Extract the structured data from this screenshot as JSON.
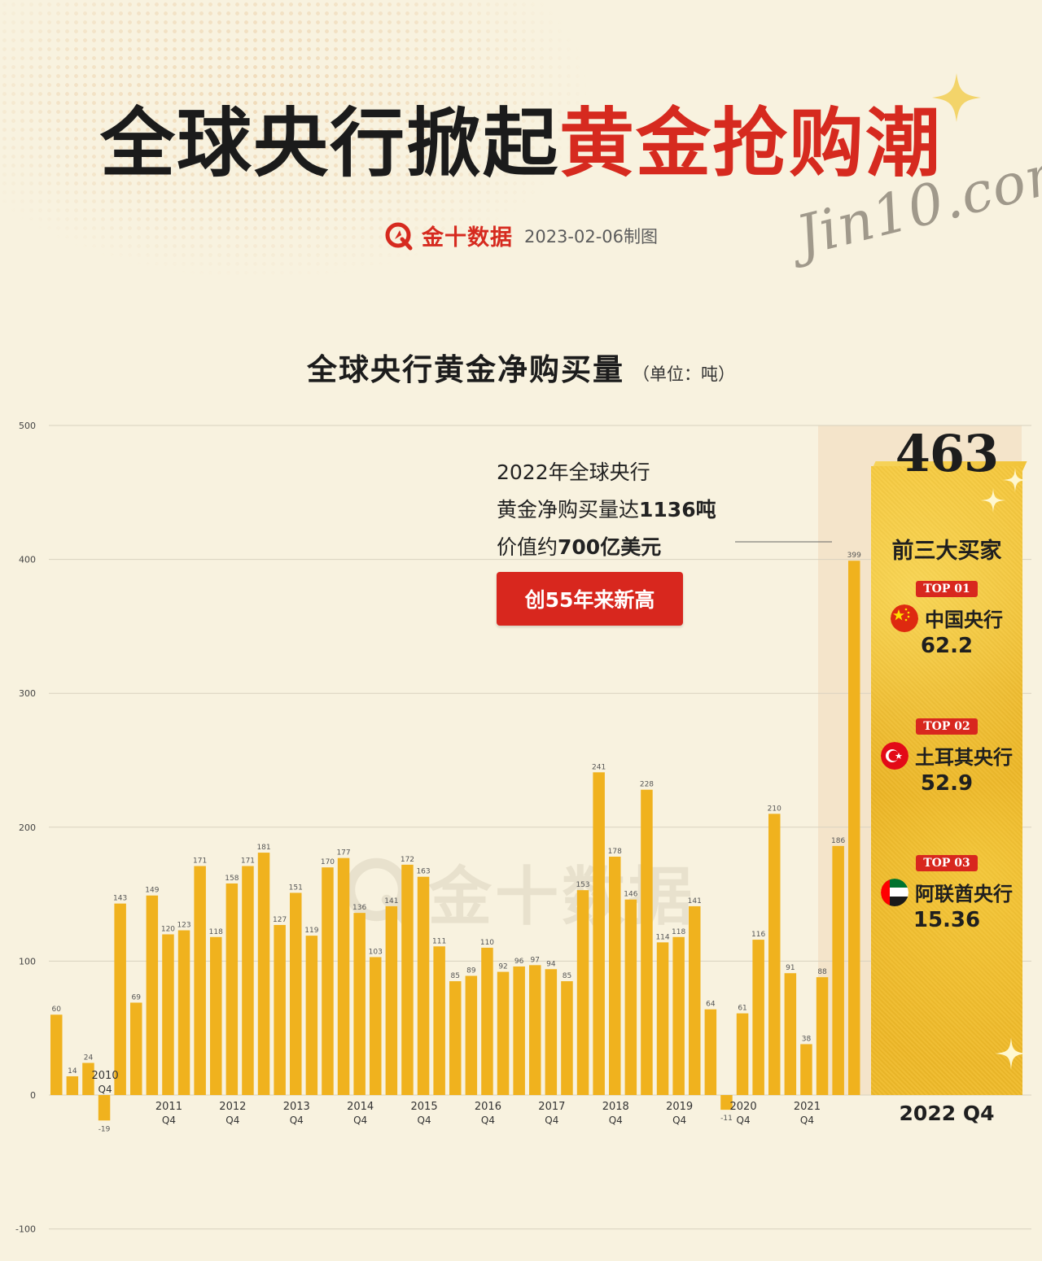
{
  "header": {
    "headline_part1": "全球央行掀起",
    "headline_part2": "黄金抢购潮",
    "script_brand": "Jin10.com",
    "brand_name": "金十数据",
    "date": "2023-02-06制图"
  },
  "colors": {
    "background": "#f8f2df",
    "bar": "#f0b21e",
    "accent_red": "#d8271e",
    "gold_panel": "#efb827",
    "highlight_column": "#f2e0c4"
  },
  "annotation": {
    "line1": "2022年全球央行",
    "line2_prefix": "黄金净购买量达",
    "line2_bold": "1136吨",
    "line3_prefix": "价值约",
    "line3_bold": "700亿美元",
    "badge": "创55年来新高"
  },
  "highlight": {
    "value": "463",
    "label": "2022 Q4",
    "top3_title": "前三大买家",
    "buyers": [
      {
        "rank": "TOP 01",
        "name": "中国央行",
        "value": "62.2",
        "flag": "china-flag"
      },
      {
        "rank": "TOP 02",
        "name": "土耳其央行",
        "value": "52.9",
        "flag": "turkey-flag"
      },
      {
        "rank": "TOP 03",
        "name": "阿联酋央行",
        "value": "15.36",
        "flag": "uae-flag"
      }
    ]
  },
  "watermark": "金十数据",
  "chart_data": {
    "type": "bar",
    "title": "全球央行黄金净购买量",
    "unit": "（单位：吨）",
    "ylim": [
      -100,
      500
    ],
    "yticks": [
      -100,
      0,
      100,
      200,
      300,
      400,
      500
    ],
    "grid": true,
    "x_labels": [
      {
        "index": 3,
        "year": "2010",
        "quarter": "Q4"
      },
      {
        "index": 7,
        "year": "2011",
        "quarter": "Q4"
      },
      {
        "index": 11,
        "year": "2012",
        "quarter": "Q4"
      },
      {
        "index": 15,
        "year": "2013",
        "quarter": "Q4"
      },
      {
        "index": 19,
        "year": "2014",
        "quarter": "Q4"
      },
      {
        "index": 23,
        "year": "2015",
        "quarter": "Q4"
      },
      {
        "index": 27,
        "year": "2016",
        "quarter": "Q4"
      },
      {
        "index": 31,
        "year": "2017",
        "quarter": "Q4"
      },
      {
        "index": 35,
        "year": "2018",
        "quarter": "Q4"
      },
      {
        "index": 39,
        "year": "2019",
        "quarter": "Q4"
      },
      {
        "index": 43,
        "year": "2020",
        "quarter": "Q4"
      },
      {
        "index": 47,
        "year": "2021",
        "quarter": "Q4"
      }
    ],
    "values": [
      60,
      14,
      24,
      -19,
      143,
      69,
      149,
      120,
      123,
      171,
      118,
      158,
      171,
      181,
      127,
      151,
      119,
      170,
      177,
      136,
      103,
      141,
      172,
      163,
      111,
      85,
      89,
      110,
      92,
      96,
      97,
      94,
      85,
      153,
      241,
      178,
      146,
      228,
      114,
      118,
      141,
      64,
      -11,
      61,
      116,
      210,
      91,
      38,
      88,
      186,
      399,
      463
    ]
  }
}
